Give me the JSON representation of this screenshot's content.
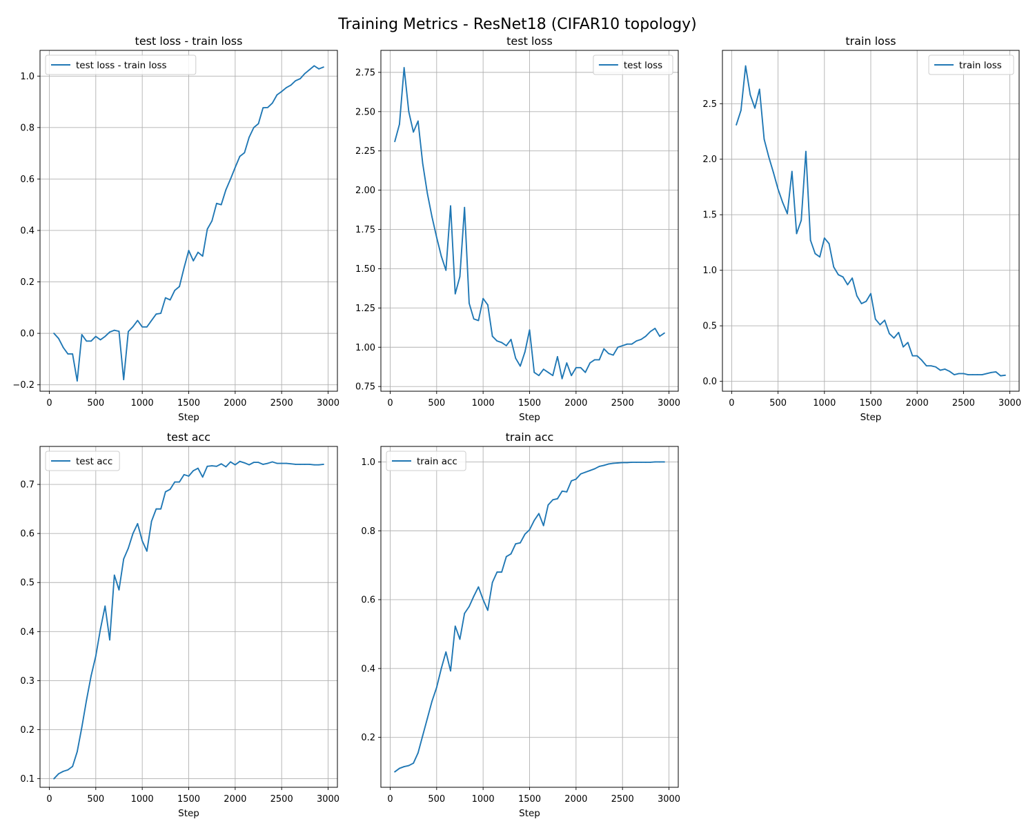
{
  "figure": {
    "title": "Training Metrics - ResNet18 (CIFAR10 topology)",
    "line_color": "#1f77b4"
  },
  "chart_data": [
    {
      "type": "line",
      "title": "test loss - train loss",
      "xlabel": "Step",
      "ylabel": "",
      "legend_position": "upper-left",
      "grid": true,
      "xlim": [
        -100,
        3100
      ],
      "ylim": [
        -0.225,
        1.1
      ],
      "x_ticks": [
        0,
        500,
        1000,
        1500,
        2000,
        2500,
        3000
      ],
      "y_ticks": [
        -0.2,
        0.0,
        0.2,
        0.4,
        0.6,
        0.8,
        1.0
      ],
      "y_tick_labels": [
        "−0.2",
        "0.0",
        "0.2",
        "0.4",
        "0.6",
        "0.8",
        "1.0"
      ],
      "x_tick_labels": [
        "0",
        "500",
        "1000",
        "1500",
        "2000",
        "2500",
        "3000"
      ],
      "series": [
        {
          "name": "test loss - train loss",
          "x": [
            50,
            100,
            150,
            200,
            250,
            300,
            350,
            400,
            450,
            500,
            550,
            600,
            650,
            700,
            750,
            800,
            850,
            900,
            950,
            1000,
            1050,
            1100,
            1150,
            1200,
            1250,
            1300,
            1350,
            1400,
            1450,
            1500,
            1550,
            1600,
            1650,
            1700,
            1750,
            1800,
            1850,
            1900,
            1950,
            2000,
            2050,
            2100,
            2150,
            2200,
            2250,
            2300,
            2350,
            2400,
            2450,
            2500,
            2550,
            2600,
            2650,
            2700,
            2750,
            2800,
            2850,
            2900,
            2950
          ],
          "y": [
            0.0,
            -0.02,
            -0.055,
            -0.08,
            -0.08,
            -0.185,
            -0.005,
            -0.03,
            -0.03,
            -0.012,
            -0.025,
            -0.012,
            0.005,
            0.012,
            0.008,
            -0.18,
            0.007,
            0.026,
            0.05,
            0.025,
            0.025,
            0.05,
            0.075,
            0.078,
            0.138,
            0.13,
            0.167,
            0.182,
            0.255,
            0.322,
            0.282,
            0.315,
            0.3,
            0.405,
            0.437,
            0.505,
            0.5,
            0.558,
            0.6,
            0.645,
            0.688,
            0.702,
            0.762,
            0.8,
            0.815,
            0.877,
            0.878,
            0.895,
            0.927,
            0.94,
            0.955,
            0.965,
            0.982,
            0.99,
            1.01,
            1.025,
            1.04,
            1.028,
            1.035
          ]
        }
      ]
    },
    {
      "type": "line",
      "title": "test loss",
      "xlabel": "Step",
      "ylabel": "",
      "legend_position": "upper-right",
      "grid": true,
      "xlim": [
        -100,
        3100
      ],
      "ylim": [
        0.72,
        2.89
      ],
      "x_ticks": [
        0,
        500,
        1000,
        1500,
        2000,
        2500,
        3000
      ],
      "y_ticks": [
        0.75,
        1.0,
        1.25,
        1.5,
        1.75,
        2.0,
        2.25,
        2.5,
        2.75
      ],
      "y_tick_labels": [
        "0.75",
        "1.00",
        "1.25",
        "1.50",
        "1.75",
        "2.00",
        "2.25",
        "2.50",
        "2.75"
      ],
      "x_tick_labels": [
        "0",
        "500",
        "1000",
        "1500",
        "2000",
        "2500",
        "3000"
      ],
      "series": [
        {
          "name": "test loss",
          "x": [
            50,
            100,
            150,
            200,
            250,
            300,
            350,
            400,
            450,
            500,
            550,
            600,
            650,
            700,
            750,
            800,
            850,
            900,
            950,
            1000,
            1050,
            1100,
            1150,
            1200,
            1250,
            1300,
            1350,
            1400,
            1450,
            1500,
            1550,
            1600,
            1650,
            1700,
            1750,
            1800,
            1850,
            1900,
            1950,
            2000,
            2050,
            2100,
            2150,
            2200,
            2250,
            2300,
            2350,
            2400,
            2450,
            2500,
            2550,
            2600,
            2650,
            2700,
            2750,
            2800,
            2850,
            2900,
            2950
          ],
          "y": [
            2.31,
            2.42,
            2.78,
            2.5,
            2.37,
            2.44,
            2.17,
            1.98,
            1.83,
            1.7,
            1.58,
            1.49,
            1.9,
            1.34,
            1.45,
            1.89,
            1.28,
            1.18,
            1.17,
            1.31,
            1.27,
            1.07,
            1.04,
            1.03,
            1.01,
            1.05,
            0.93,
            0.88,
            0.97,
            1.11,
            0.84,
            0.82,
            0.86,
            0.84,
            0.82,
            0.94,
            0.8,
            0.9,
            0.82,
            0.87,
            0.87,
            0.84,
            0.9,
            0.92,
            0.92,
            0.99,
            0.96,
            0.95,
            1.0,
            1.01,
            1.02,
            1.02,
            1.04,
            1.05,
            1.07,
            1.1,
            1.12,
            1.07,
            1.09
          ]
        }
      ]
    },
    {
      "type": "line",
      "title": "train loss",
      "xlabel": "Step",
      "ylabel": "",
      "legend_position": "upper-right",
      "grid": true,
      "xlim": [
        -100,
        3100
      ],
      "ylim": [
        -0.089,
        2.98
      ],
      "x_ticks": [
        0,
        500,
        1000,
        1500,
        2000,
        2500,
        3000
      ],
      "y_ticks": [
        0.0,
        0.5,
        1.0,
        1.5,
        2.0,
        2.5
      ],
      "y_tick_labels": [
        "0.0",
        "0.5",
        "1.0",
        "1.5",
        "2.0",
        "2.5"
      ],
      "x_tick_labels": [
        "0",
        "500",
        "1000",
        "1500",
        "2000",
        "2500",
        "3000"
      ],
      "series": [
        {
          "name": "train loss",
          "x": [
            50,
            100,
            150,
            200,
            250,
            300,
            350,
            400,
            450,
            500,
            550,
            600,
            650,
            700,
            750,
            800,
            850,
            900,
            950,
            1000,
            1050,
            1100,
            1150,
            1200,
            1250,
            1300,
            1350,
            1400,
            1450,
            1500,
            1550,
            1600,
            1650,
            1700,
            1750,
            1800,
            1850,
            1900,
            1950,
            2000,
            2050,
            2100,
            2150,
            2200,
            2250,
            2300,
            2350,
            2400,
            2450,
            2500,
            2550,
            2600,
            2650,
            2700,
            2750,
            2800,
            2850,
            2900,
            2950
          ],
          "y": [
            2.31,
            2.44,
            2.84,
            2.58,
            2.46,
            2.63,
            2.18,
            2.02,
            1.88,
            1.73,
            1.61,
            1.51,
            1.89,
            1.33,
            1.45,
            2.07,
            1.27,
            1.15,
            1.12,
            1.29,
            1.24,
            1.03,
            0.96,
            0.94,
            0.87,
            0.93,
            0.77,
            0.7,
            0.72,
            0.79,
            0.56,
            0.51,
            0.55,
            0.43,
            0.39,
            0.44,
            0.31,
            0.35,
            0.23,
            0.23,
            0.19,
            0.14,
            0.14,
            0.13,
            0.1,
            0.11,
            0.09,
            0.06,
            0.07,
            0.07,
            0.06,
            0.06,
            0.06,
            0.06,
            0.07,
            0.08,
            0.085,
            0.05,
            0.055
          ]
        }
      ]
    },
    {
      "type": "line",
      "title": "test acc",
      "xlabel": "Step",
      "ylabel": "",
      "legend_position": "upper-left",
      "grid": true,
      "xlim": [
        -100,
        3100
      ],
      "ylim": [
        0.0825,
        0.7775
      ],
      "x_ticks": [
        0,
        500,
        1000,
        1500,
        2000,
        2500,
        3000
      ],
      "y_ticks": [
        0.1,
        0.2,
        0.3,
        0.4,
        0.5,
        0.6,
        0.7
      ],
      "y_tick_labels": [
        "0.1",
        "0.2",
        "0.3",
        "0.4",
        "0.5",
        "0.6",
        "0.7"
      ],
      "x_tick_labels": [
        "0",
        "500",
        "1000",
        "1500",
        "2000",
        "2500",
        "3000"
      ],
      "series": [
        {
          "name": "test acc",
          "x": [
            50,
            100,
            150,
            200,
            250,
            300,
            350,
            400,
            450,
            500,
            550,
            600,
            650,
            700,
            750,
            800,
            850,
            900,
            950,
            1000,
            1050,
            1100,
            1150,
            1200,
            1250,
            1300,
            1350,
            1400,
            1450,
            1500,
            1550,
            1600,
            1650,
            1700,
            1750,
            1800,
            1850,
            1900,
            1950,
            2000,
            2050,
            2100,
            2150,
            2200,
            2250,
            2300,
            2350,
            2400,
            2450,
            2500,
            2550,
            2600,
            2650,
            2700,
            2750,
            2800,
            2850,
            2900,
            2950
          ],
          "y": [
            0.1,
            0.11,
            0.115,
            0.118,
            0.125,
            0.155,
            0.205,
            0.26,
            0.31,
            0.35,
            0.405,
            0.452,
            0.383,
            0.515,
            0.485,
            0.548,
            0.57,
            0.6,
            0.62,
            0.585,
            0.564,
            0.625,
            0.65,
            0.65,
            0.685,
            0.69,
            0.705,
            0.705,
            0.72,
            0.717,
            0.728,
            0.733,
            0.715,
            0.737,
            0.738,
            0.737,
            0.742,
            0.736,
            0.746,
            0.74,
            0.747,
            0.744,
            0.74,
            0.745,
            0.745,
            0.741,
            0.743,
            0.746,
            0.743,
            0.743,
            0.743,
            0.742,
            0.741,
            0.741,
            0.741,
            0.741,
            0.74,
            0.74,
            0.741
          ]
        }
      ]
    },
    {
      "type": "line",
      "title": "train acc",
      "xlabel": "Step",
      "ylabel": "",
      "legend_position": "upper-left",
      "grid": true,
      "xlim": [
        -100,
        3100
      ],
      "ylim": [
        0.055,
        1.045
      ],
      "x_ticks": [
        0,
        500,
        1000,
        1500,
        2000,
        2500,
        3000
      ],
      "y_ticks": [
        0.2,
        0.4,
        0.6,
        0.8,
        1.0
      ],
      "y_tick_labels": [
        "0.2",
        "0.4",
        "0.6",
        "0.8",
        "1.0"
      ],
      "x_tick_labels": [
        "0",
        "500",
        "1000",
        "1500",
        "2000",
        "2500",
        "3000"
      ],
      "series": [
        {
          "name": "train acc",
          "x": [
            50,
            100,
            150,
            200,
            250,
            300,
            350,
            400,
            450,
            500,
            550,
            600,
            650,
            700,
            750,
            800,
            850,
            900,
            950,
            1000,
            1050,
            1100,
            1150,
            1200,
            1250,
            1300,
            1350,
            1400,
            1450,
            1500,
            1550,
            1600,
            1650,
            1700,
            1750,
            1800,
            1850,
            1900,
            1950,
            2000,
            2050,
            2100,
            2150,
            2200,
            2250,
            2300,
            2350,
            2400,
            2450,
            2500,
            2550,
            2600,
            2650,
            2700,
            2750,
            2800,
            2850,
            2900,
            2950
          ],
          "y": [
            0.1,
            0.11,
            0.115,
            0.118,
            0.125,
            0.155,
            0.205,
            0.255,
            0.305,
            0.345,
            0.4,
            0.448,
            0.393,
            0.523,
            0.485,
            0.56,
            0.58,
            0.61,
            0.637,
            0.6,
            0.569,
            0.65,
            0.68,
            0.68,
            0.725,
            0.733,
            0.762,
            0.765,
            0.79,
            0.803,
            0.83,
            0.85,
            0.815,
            0.875,
            0.89,
            0.893,
            0.915,
            0.913,
            0.945,
            0.95,
            0.965,
            0.97,
            0.975,
            0.98,
            0.987,
            0.99,
            0.994,
            0.996,
            0.997,
            0.998,
            0.998,
            0.999,
            0.999,
            0.999,
            0.999,
            0.999,
            1.0,
            1.0,
            1.0
          ]
        }
      ]
    }
  ]
}
